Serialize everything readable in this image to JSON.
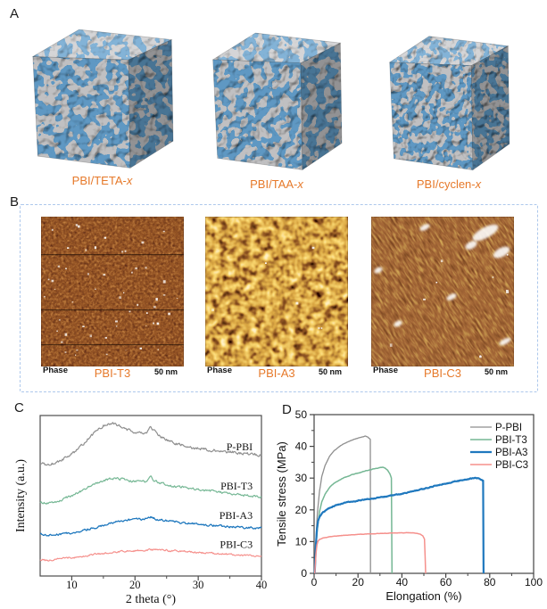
{
  "colors": {
    "accent_orange": "#E6792A",
    "series_gray": "#8E8E8E",
    "series_green": "#75B794",
    "series_blue": "#1F78BE",
    "series_pink": "#F5908C",
    "dashed_box": "#ADC8EC",
    "cube_blue": "#215C9E",
    "cube_gray": "#999B9B"
  },
  "panel_a": {
    "letter": "A",
    "cubes": [
      {
        "base": "PBI/TETA-",
        "suffix": "x"
      },
      {
        "base": "PBI/TAA-",
        "suffix": "x"
      },
      {
        "base": "PBI/cyclen-",
        "suffix": "x"
      }
    ]
  },
  "panel_b": {
    "letter": "B",
    "images": [
      {
        "corner": "Phase",
        "label": "PBI-T3",
        "scale": "50 nm"
      },
      {
        "corner": "Phase",
        "label": "PBI-A3",
        "scale": "50 nm"
      },
      {
        "corner": "Phase",
        "label": "PBI-C3",
        "scale": "50 nm"
      }
    ]
  },
  "panel_c": {
    "letter": "C"
  },
  "panel_d": {
    "letter": "D"
  },
  "chart_data": [
    {
      "id": "xrd",
      "type": "line",
      "title": "",
      "xlabel": "2 theta (°)",
      "ylabel": "Intensity (a.u.)",
      "xlim": [
        5,
        40
      ],
      "ylim": [
        0,
        10
      ],
      "xticks": [
        10,
        20,
        30,
        40
      ],
      "xminor": [
        15,
        25,
        35
      ],
      "grid": false,
      "legend_position": "inline-labels",
      "series": [
        {
          "name": "P-PBI",
          "color": "#8E8E8E",
          "width": 1.2,
          "noise": 0.15,
          "label_y": 8.05,
          "points": [
            [
              5,
              7.05
            ],
            [
              6,
              6.95
            ],
            [
              7,
              7.0
            ],
            [
              8,
              7.15
            ],
            [
              9,
              7.35
            ],
            [
              10,
              7.6
            ],
            [
              11,
              7.9
            ],
            [
              12,
              8.3
            ],
            [
              13,
              8.7
            ],
            [
              14,
              9.1
            ],
            [
              15,
              9.35
            ],
            [
              16,
              9.5
            ],
            [
              17,
              9.45
            ],
            [
              18,
              9.3
            ],
            [
              19,
              9.1
            ],
            [
              20,
              8.9
            ],
            [
              21,
              8.85
            ],
            [
              21.8,
              8.9
            ],
            [
              22.4,
              9.3
            ],
            [
              23,
              9.1
            ],
            [
              24,
              8.7
            ],
            [
              25,
              8.5
            ],
            [
              26,
              8.35
            ],
            [
              27,
              8.2
            ],
            [
              28,
              8.1
            ],
            [
              29,
              8.0
            ],
            [
              30,
              7.95
            ],
            [
              32,
              7.85
            ],
            [
              34,
              7.75
            ],
            [
              36,
              7.7
            ],
            [
              38,
              7.6
            ],
            [
              40,
              7.55
            ]
          ]
        },
        {
          "name": "PBI-T3",
          "color": "#75B794",
          "width": 1.2,
          "noise": 0.12,
          "label_y": 5.6,
          "points": [
            [
              5,
              4.6
            ],
            [
              6,
              4.55
            ],
            [
              7,
              4.6
            ],
            [
              8,
              4.7
            ],
            [
              9,
              4.85
            ],
            [
              10,
              5.0
            ],
            [
              11,
              5.2
            ],
            [
              12,
              5.4
            ],
            [
              13,
              5.6
            ],
            [
              14,
              5.8
            ],
            [
              15,
              5.95
            ],
            [
              16,
              6.05
            ],
            [
              17,
              6.1
            ],
            [
              18,
              6.05
            ],
            [
              19,
              5.95
            ],
            [
              20,
              5.9
            ],
            [
              21,
              5.85
            ],
            [
              21.8,
              5.9
            ],
            [
              22.4,
              6.3
            ],
            [
              23,
              5.95
            ],
            [
              24,
              5.8
            ],
            [
              25,
              5.7
            ],
            [
              26,
              5.6
            ],
            [
              28,
              5.5
            ],
            [
              30,
              5.4
            ],
            [
              32,
              5.3
            ],
            [
              34,
              5.2
            ],
            [
              36,
              5.1
            ],
            [
              38,
              5.0
            ],
            [
              40,
              4.95
            ]
          ]
        },
        {
          "name": "PBI-A3",
          "color": "#1F78BE",
          "width": 1.3,
          "noise": 0.11,
          "label_y": 3.78,
          "points": [
            [
              5,
              2.6
            ],
            [
              6,
              2.55
            ],
            [
              7,
              2.55
            ],
            [
              8,
              2.6
            ],
            [
              9,
              2.65
            ],
            [
              10,
              2.7
            ],
            [
              11,
              2.75
            ],
            [
              12,
              2.85
            ],
            [
              13,
              2.95
            ],
            [
              14,
              3.05
            ],
            [
              15,
              3.15
            ],
            [
              16,
              3.25
            ],
            [
              17,
              3.35
            ],
            [
              18,
              3.45
            ],
            [
              19,
              3.5
            ],
            [
              20,
              3.55
            ],
            [
              21,
              3.55
            ],
            [
              22,
              3.6
            ],
            [
              22.5,
              3.7
            ],
            [
              23,
              3.6
            ],
            [
              24,
              3.5
            ],
            [
              25,
              3.45
            ],
            [
              26,
              3.4
            ],
            [
              28,
              3.3
            ],
            [
              30,
              3.2
            ],
            [
              32,
              3.15
            ],
            [
              34,
              3.1
            ],
            [
              36,
              3.05
            ],
            [
              38,
              3.0
            ],
            [
              40,
              3.0
            ]
          ]
        },
        {
          "name": "PBI-C3",
          "color": "#F5908C",
          "width": 1.2,
          "noise": 0.1,
          "label_y": 1.98,
          "points": [
            [
              5,
              1.0
            ],
            [
              6,
              0.98
            ],
            [
              7,
              1.0
            ],
            [
              8,
              1.05
            ],
            [
              9,
              1.1
            ],
            [
              10,
              1.15
            ],
            [
              11,
              1.2
            ],
            [
              13,
              1.3
            ],
            [
              15,
              1.4
            ],
            [
              17,
              1.5
            ],
            [
              19,
              1.55
            ],
            [
              21,
              1.6
            ],
            [
              23,
              1.62
            ],
            [
              25,
              1.6
            ],
            [
              27,
              1.55
            ],
            [
              29,
              1.5
            ],
            [
              31,
              1.45
            ],
            [
              33,
              1.4
            ],
            [
              35,
              1.35
            ],
            [
              37,
              1.3
            ],
            [
              39,
              1.25
            ],
            [
              40,
              1.25
            ]
          ]
        }
      ]
    },
    {
      "id": "tensile",
      "type": "line",
      "title": "",
      "xlabel": "Elongation (%)",
      "ylabel": "Tensile stress (MPa)",
      "xlim": [
        0,
        100
      ],
      "ylim": [
        0,
        50
      ],
      "xticks": [
        0,
        20,
        40,
        60,
        80,
        100
      ],
      "xminor": [
        10,
        30,
        50,
        70,
        90
      ],
      "yticks": [
        0,
        10,
        20,
        30,
        40,
        50
      ],
      "yminor": [
        5,
        15,
        25,
        35,
        45
      ],
      "grid": false,
      "legend_position": "top-right",
      "series": [
        {
          "name": "P-PBI",
          "color": "#8E8E8E",
          "width": 1.3,
          "noise": 0.1,
          "points": [
            [
              0.3,
              0
            ],
            [
              0.8,
              10
            ],
            [
              1.5,
              19
            ],
            [
              2.5,
              26
            ],
            [
              3.5,
              30.5
            ],
            [
              5,
              34
            ],
            [
              7,
              36.8
            ],
            [
              9,
              38.5
            ],
            [
              11,
              39.7
            ],
            [
              13,
              40.6
            ],
            [
              15,
              41.3
            ],
            [
              17,
              41.9
            ],
            [
              19,
              42.4
            ],
            [
              21,
              42.8
            ],
            [
              22.5,
              43.1
            ],
            [
              23.5,
              43.2
            ],
            [
              24.5,
              42.9
            ],
            [
              25.3,
              42.4
            ],
            [
              25.6,
              42.2
            ],
            [
              25.7,
              0
            ]
          ]
        },
        {
          "name": "PBI-T3",
          "color": "#75B794",
          "width": 1.5,
          "noise": 0.12,
          "points": [
            [
              0.3,
              0
            ],
            [
              0.8,
              8
            ],
            [
              1.5,
              14
            ],
            [
              2.5,
              19.5
            ],
            [
              3.5,
              22.5
            ],
            [
              5,
              25
            ],
            [
              7,
              27
            ],
            [
              9,
              28.3
            ],
            [
              11,
              29.2
            ],
            [
              13,
              29.9
            ],
            [
              15,
              30.5
            ],
            [
              17,
              31
            ],
            [
              19,
              31.4
            ],
            [
              21,
              31.8
            ],
            [
              23,
              32.2
            ],
            [
              25,
              32.5
            ],
            [
              27,
              32.9
            ],
            [
              29,
              33.2
            ],
            [
              30.5,
              33.4
            ],
            [
              31.5,
              33.4
            ],
            [
              32.5,
              33.1
            ],
            [
              33.5,
              32.5
            ],
            [
              34.5,
              31.4
            ],
            [
              35.2,
              30
            ],
            [
              35.5,
              0
            ]
          ]
        },
        {
          "name": "PBI-A3",
          "color": "#1F78BE",
          "width": 2.2,
          "noise": 0.22,
          "points": [
            [
              0.3,
              0
            ],
            [
              0.8,
              9
            ],
            [
              1.3,
              14
            ],
            [
              1.8,
              16.5
            ],
            [
              2.5,
              17.8
            ],
            [
              3.5,
              18.8
            ],
            [
              5,
              19.7
            ],
            [
              7,
              20.6
            ],
            [
              9,
              21.2
            ],
            [
              12,
              21.9
            ],
            [
              15,
              22.4
            ],
            [
              18,
              22.7
            ],
            [
              21,
              23
            ],
            [
              24,
              23.3
            ],
            [
              27,
              23.6
            ],
            [
              30,
              23.9
            ],
            [
              33,
              24.2
            ],
            [
              36,
              24.6
            ],
            [
              40,
              25.1
            ],
            [
              44,
              25.7
            ],
            [
              48,
              26.3
            ],
            [
              52,
              27
            ],
            [
              56,
              27.7
            ],
            [
              60,
              28.3
            ],
            [
              64,
              28.9
            ],
            [
              68,
              29.4
            ],
            [
              71,
              29.8
            ],
            [
              73,
              30
            ],
            [
              75,
              29.9
            ],
            [
              76.5,
              29.5
            ],
            [
              77,
              29.2
            ],
            [
              77.2,
              0
            ]
          ]
        },
        {
          "name": "PBI-C3",
          "color": "#F5908C",
          "width": 1.5,
          "noise": 0.08,
          "points": [
            [
              0.3,
              0
            ],
            [
              0.8,
              6
            ],
            [
              1.3,
              9
            ],
            [
              1.8,
              10.2
            ],
            [
              2.5,
              10.7
            ],
            [
              4,
              11.1
            ],
            [
              6,
              11.4
            ],
            [
              8,
              11.6
            ],
            [
              11,
              11.8
            ],
            [
              14,
              12
            ],
            [
              17,
              12.1
            ],
            [
              20,
              12.25
            ],
            [
              24,
              12.4
            ],
            [
              28,
              12.5
            ],
            [
              32,
              12.6
            ],
            [
              36,
              12.7
            ],
            [
              40,
              12.75
            ],
            [
              43,
              12.8
            ],
            [
              45,
              12.75
            ],
            [
              47,
              12.6
            ],
            [
              48.5,
              12.3
            ],
            [
              49.5,
              11.8
            ],
            [
              50.3,
              10.8
            ],
            [
              50.8,
              0
            ]
          ]
        }
      ]
    }
  ]
}
